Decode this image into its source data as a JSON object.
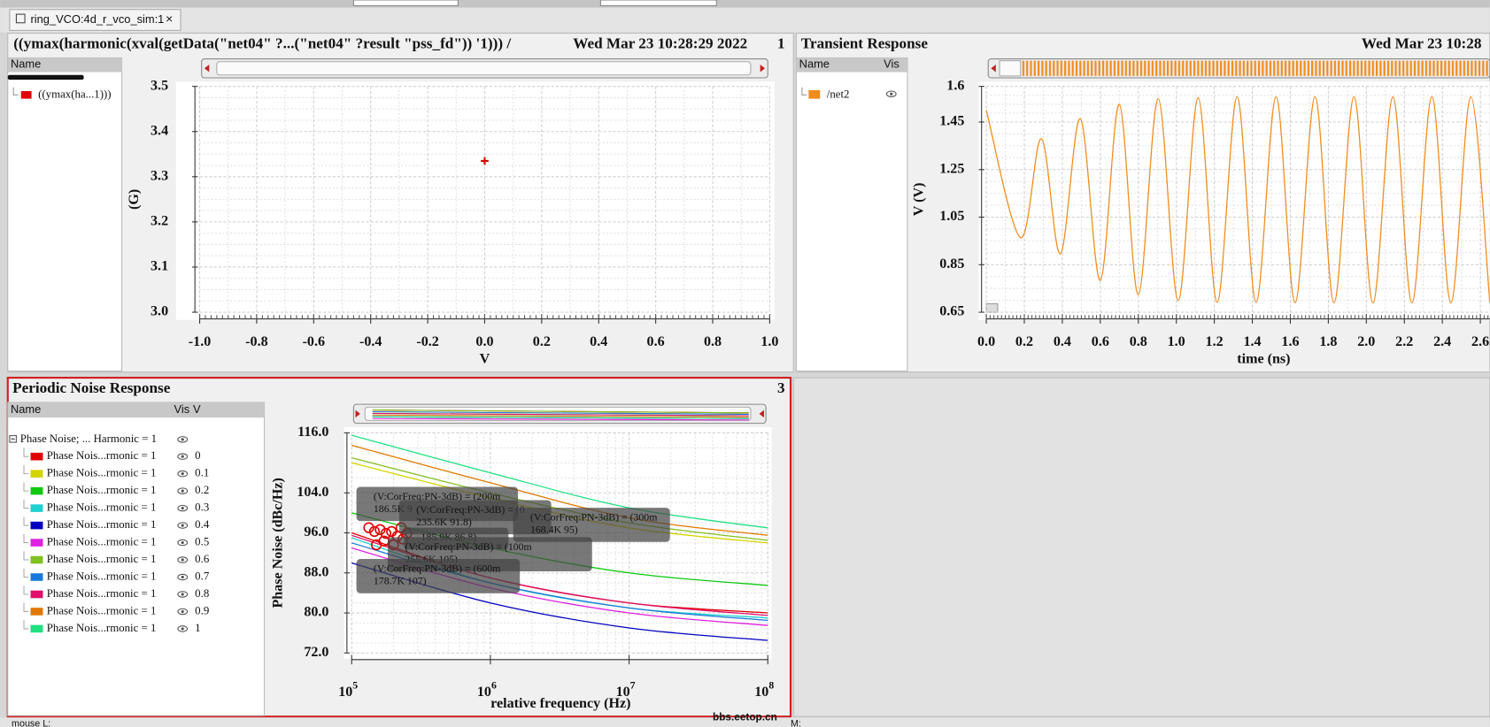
{
  "tab": {
    "label": "ring_VCO:4d_r_vco_sim:1",
    "close": "×"
  },
  "panels": [
    {
      "title": "((ymax(harmonic(xval(getData(\"net04\" ?...(\"net04\" ?result \"pss_fd\")) '1))) /",
      "date": "Wed Mar 23 10:28:29 2022",
      "number": "1",
      "columns": [
        "Name"
      ],
      "chart": {
        "type": "scatter",
        "x_label": "V",
        "y_label": "(G)",
        "grid": true,
        "xlim": [
          -1,
          1
        ],
        "xticks": [
          {
            "value": -1,
            "label": "-1.0"
          },
          -0.8,
          -0.6,
          -0.4,
          -0.2,
          {
            "value": 0,
            "label": "0.0"
          },
          0.2,
          0.4,
          0.6,
          0.8,
          {
            "value": 1,
            "label": "1.0"
          }
        ],
        "ylim": [
          3.0,
          3.5
        ],
        "yticks": [
          {
            "value": 3,
            "label": "3.0"
          },
          3.1,
          3.2,
          3.3,
          3.4,
          3.5
        ],
        "series": [
          {
            "name": "((ymax(ha...1)))",
            "color": "#e00000",
            "x": [
              0
            ],
            "y": [
              3.335
            ]
          }
        ]
      }
    },
    {
      "title": "Transient Response",
      "date": "Wed Mar 23 10:28",
      "columns": [
        "Name",
        "Vis"
      ],
      "chart": {
        "type": "line",
        "x_label": "time (ns)",
        "y_label": "V (V)",
        "grid": true,
        "xlim": [
          0,
          2.65
        ],
        "xticks": [
          {
            "value": 0,
            "label": "0.0"
          },
          0.2,
          0.4,
          0.6,
          0.8,
          {
            "value": 1,
            "label": "1.0"
          },
          1.2,
          1.4,
          1.6,
          1.8,
          {
            "value": 2,
            "label": "2.0"
          },
          2.2,
          2.4,
          2.6
        ],
        "ylim": [
          0.65,
          1.6
        ],
        "yticks": [
          0.65,
          0.85,
          1.05,
          1.25,
          1.45,
          1.6
        ],
        "series": [
          {
            "name": "/net2",
            "color": "#f08c1e",
            "x": [
              0,
              0.18,
              0.29,
              0.39,
              0.495,
              0.6,
              0.7,
              0.8,
              0.905,
              1.01,
              1.115,
              1.215,
              1.32,
              1.42,
              1.525,
              1.625,
              1.73,
              1.83,
              1.935,
              2.035,
              2.14,
              2.24,
              2.345,
              2.445,
              2.55,
              2.65
            ],
            "y": [
              1.5,
              0.964,
              1.38,
              0.896,
              1.464,
              0.784,
              1.524,
              0.724,
              1.548,
              0.7,
              1.552,
              0.692,
              1.556,
              0.692,
              1.556,
              0.69,
              1.556,
              0.69,
              1.556,
              0.69,
              1.556,
              0.69,
              1.556,
              0.69,
              1.556,
              0.69
            ]
          }
        ]
      }
    },
    {
      "title": "Periodic Noise Response",
      "number": "3",
      "columns": [
        "Name",
        "Vis",
        "V"
      ],
      "group": "Phase Noise; ... Harmonic = 1",
      "chart": {
        "type": "line",
        "log_x": true,
        "x_label": "relative frequency (Hz)",
        "y_label": "Phase Noise (dBc/Hz)",
        "grid": true,
        "xlim": [
          100000,
          100000000
        ],
        "xticks": [
          {
            "value": 100000,
            "label": "10",
            "exponent": "5"
          },
          {
            "value": 1000000,
            "label": "10",
            "exponent": "6"
          },
          {
            "value": 10000000,
            "label": "10",
            "exponent": "7"
          },
          {
            "value": 100000000,
            "label": "10",
            "exponent": "8"
          }
        ],
        "ylim": [
          72,
          116
        ],
        "yticks": [
          {
            "value": 72,
            "label": "72.0"
          },
          {
            "value": 80,
            "label": "80.0"
          },
          {
            "value": 88,
            "label": "88.0"
          },
          {
            "value": 96,
            "label": "96.0"
          },
          {
            "value": 104,
            "label": "104.0"
          },
          {
            "value": 116,
            "label": "116.0"
          }
        ],
        "x": [
          100000,
          1000000,
          10000000,
          100000000
        ],
        "series": [
          {
            "name": "Phase Nois...rmonic = 1",
            "v": "0",
            "color": "#e00000",
            "values": [
              96,
              87,
              82,
              80
            ]
          },
          {
            "name": "Phase Nois...rmonic = 1",
            "v": "0.1",
            "color": "#d4d400",
            "values": [
              110,
              103,
              97,
              94
            ]
          },
          {
            "name": "Phase Nois...rmonic = 1",
            "v": "0.2",
            "color": "#10c810",
            "values": [
              100,
              93,
              88,
              85.5
            ]
          },
          {
            "name": "Phase Nois...rmonic = 1",
            "v": "0.3",
            "color": "#20d0d0",
            "values": [
              95,
              86,
              81,
              79
            ]
          },
          {
            "name": "Phase Nois...rmonic = 1",
            "v": "0.4",
            "color": "#0000c0",
            "values": [
              90,
              82,
              77,
              74.5
            ]
          },
          {
            "name": "Phase Nois...rmonic = 1",
            "v": "0.5",
            "color": "#e020e0",
            "values": [
              93,
              85,
              80,
              77.5
            ]
          },
          {
            "name": "Phase Nois...rmonic = 1",
            "v": "0.6",
            "color": "#80c020",
            "values": [
              111,
              104,
              98,
              94.5
            ]
          },
          {
            "name": "Phase Nois...rmonic = 1",
            "v": "0.7",
            "color": "#1878d8",
            "values": [
              94,
              86,
              81,
              78.5
            ]
          },
          {
            "name": "Phase Nois...rmonic = 1",
            "v": "0.8",
            "color": "#e0106a",
            "values": [
              95.5,
              87,
              82,
              79.5
            ]
          },
          {
            "name": "Phase Nois...rmonic = 1",
            "v": "0.9",
            "color": "#e07800",
            "values": [
              113.5,
              106,
              99,
              95.5
            ]
          },
          {
            "name": "Phase Nois...rmonic = 1",
            "v": "1",
            "color": "#20e080",
            "values": [
              115.5,
              108,
              101,
              97
            ]
          }
        ],
        "annotations": [
          {
            "lines": [
              "(V:CorFreq:PN-3dB) = (200m",
              "186.5K 9"
            ]
          },
          {
            "lines": [
              "(V:CorFreq:PN-3dB) = (0",
              "235.6K 91.8)"
            ]
          },
          {
            "lines": [
              "(V:CorFreq:PN-3dB) = (300m",
              "168.4K 95)"
            ]
          },
          {
            "lines": [
              "185.9K 86.8)"
            ]
          },
          {
            "lines": [
              "(V:CorFreq:PN-3dB) = (100m",
              "255.6K 105)"
            ]
          },
          {
            "lines": [
              "(V:CorFreq:PN-3dB) = (600m",
              "178.7K 107)"
            ]
          }
        ]
      }
    }
  ],
  "status": {
    "left": "mouse L:",
    "middle": "M:",
    "watermark": "bbs.eetop.cn"
  }
}
